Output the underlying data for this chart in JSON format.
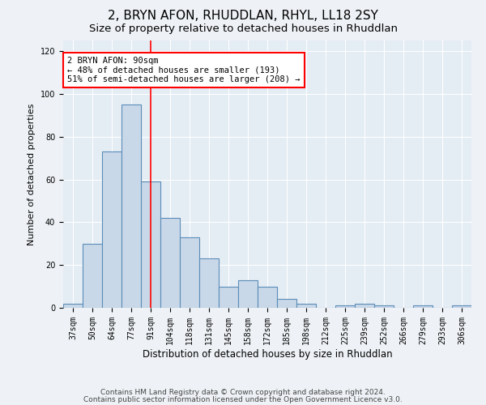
{
  "title1": "2, BRYN AFON, RHUDDLAN, RHYL, LL18 2SY",
  "title2": "Size of property relative to detached houses in Rhuddlan",
  "xlabel": "Distribution of detached houses by size in Rhuddlan",
  "ylabel": "Number of detached properties",
  "categories": [
    "37sqm",
    "50sqm",
    "64sqm",
    "77sqm",
    "91sqm",
    "104sqm",
    "118sqm",
    "131sqm",
    "145sqm",
    "158sqm",
    "172sqm",
    "185sqm",
    "198sqm",
    "212sqm",
    "225sqm",
    "239sqm",
    "252sqm",
    "266sqm",
    "279sqm",
    "293sqm",
    "306sqm"
  ],
  "values": [
    2,
    30,
    73,
    95,
    59,
    42,
    33,
    23,
    10,
    13,
    10,
    4,
    2,
    0,
    1,
    2,
    1,
    0,
    1,
    0,
    1
  ],
  "bar_color": "#c8d8e8",
  "bar_edge_color": "#5b8db8",
  "redline_index": 4,
  "annotation_text": "2 BRYN AFON: 90sqm\n← 48% of detached houses are smaller (193)\n51% of semi-detached houses are larger (208) →",
  "ylim": [
    0,
    125
  ],
  "yticks": [
    0,
    20,
    40,
    60,
    80,
    100,
    120
  ],
  "footer1": "Contains HM Land Registry data © Crown copyright and database right 2024.",
  "footer2": "Contains public sector information licensed under the Open Government Licence v3.0.",
  "bg_color": "#eef2f6",
  "plot_bg_color": "#e4ecf4",
  "grid_color": "#ffffff",
  "title1_fontsize": 11,
  "title2_fontsize": 9.5,
  "xlabel_fontsize": 8.5,
  "ylabel_fontsize": 8,
  "tick_fontsize": 7,
  "annot_fontsize": 7.5,
  "footer_fontsize": 6.5
}
